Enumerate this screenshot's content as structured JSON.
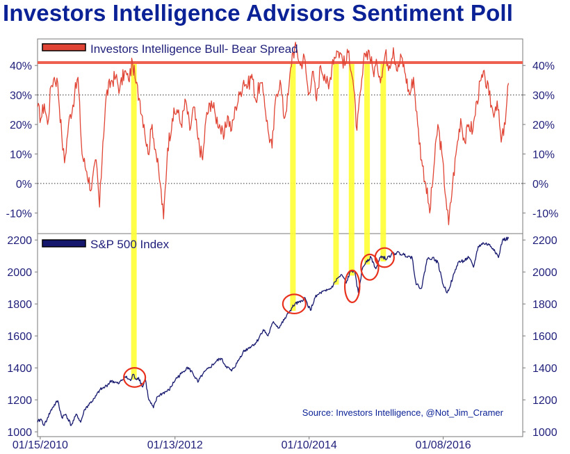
{
  "title": "Investors Intelligence Advisors Sentiment Poll",
  "colors": {
    "title": "#0b2196",
    "spread_line": "#e04434",
    "sp500_line": "#16186e",
    "threshold": "#ef5f4f",
    "highlight": "#ffff33",
    "circle": "#e8321e",
    "axis_text": "#1e1e7a"
  },
  "chart_data": [
    {
      "type": "line",
      "name": "spread",
      "legend": "Investors Intelligence Bull- Bear Spread",
      "ylabel_ticks": [
        "40%",
        "30%",
        "20%",
        "10%",
        "0%",
        "-10%"
      ],
      "ytick_values": [
        40,
        30,
        20,
        10,
        0,
        -10
      ],
      "ylim": [
        -17,
        49
      ],
      "threshold": 41,
      "gridlines": [
        30,
        0
      ],
      "x_range": [
        2010.0,
        2017.2
      ],
      "anchors": [
        [
          2010.0,
          26
        ],
        [
          2010.05,
          22
        ],
        [
          2010.1,
          27
        ],
        [
          2010.15,
          20
        ],
        [
          2010.2,
          33
        ],
        [
          2010.25,
          36
        ],
        [
          2010.3,
          34
        ],
        [
          2010.36,
          16
        ],
        [
          2010.4,
          7
        ],
        [
          2010.46,
          20
        ],
        [
          2010.55,
          30
        ],
        [
          2010.6,
          36
        ],
        [
          2010.66,
          10
        ],
        [
          2010.73,
          4
        ],
        [
          2010.8,
          -2
        ],
        [
          2010.87,
          8
        ],
        [
          2010.92,
          -8
        ],
        [
          2010.97,
          14
        ],
        [
          2011.02,
          30
        ],
        [
          2011.1,
          35
        ],
        [
          2011.16,
          36
        ],
        [
          2011.22,
          32
        ],
        [
          2011.29,
          38
        ],
        [
          2011.35,
          35
        ],
        [
          2011.41,
          41
        ],
        [
          2011.46,
          34
        ],
        [
          2011.52,
          28
        ],
        [
          2011.58,
          20
        ],
        [
          2011.64,
          10
        ],
        [
          2011.7,
          20
        ],
        [
          2011.76,
          10
        ],
        [
          2011.82,
          0
        ],
        [
          2011.87,
          -12
        ],
        [
          2011.93,
          12
        ],
        [
          2012.0,
          22
        ],
        [
          2012.07,
          25
        ],
        [
          2012.13,
          20
        ],
        [
          2012.2,
          28
        ],
        [
          2012.26,
          18
        ],
        [
          2012.32,
          26
        ],
        [
          2012.38,
          15
        ],
        [
          2012.45,
          8
        ],
        [
          2012.5,
          22
        ],
        [
          2012.58,
          28
        ],
        [
          2012.64,
          23
        ],
        [
          2012.7,
          20
        ],
        [
          2012.76,
          15
        ],
        [
          2012.82,
          23
        ],
        [
          2012.88,
          18
        ],
        [
          2012.94,
          26
        ],
        [
          2013.0,
          30
        ],
        [
          2013.06,
          35
        ],
        [
          2013.12,
          33
        ],
        [
          2013.18,
          37
        ],
        [
          2013.24,
          28
        ],
        [
          2013.3,
          34
        ],
        [
          2013.36,
          30
        ],
        [
          2013.42,
          18
        ],
        [
          2013.48,
          12
        ],
        [
          2013.54,
          30
        ],
        [
          2013.6,
          35
        ],
        [
          2013.66,
          22
        ],
        [
          2013.72,
          30
        ],
        [
          2013.78,
          44
        ],
        [
          2013.84,
          46
        ],
        [
          2013.9,
          40
        ],
        [
          2013.96,
          43
        ],
        [
          2014.02,
          30
        ],
        [
          2014.08,
          38
        ],
        [
          2014.14,
          28
        ],
        [
          2014.2,
          40
        ],
        [
          2014.26,
          37
        ],
        [
          2014.32,
          32
        ],
        [
          2014.38,
          42
        ],
        [
          2014.44,
          45
        ],
        [
          2014.5,
          44
        ],
        [
          2014.56,
          40
        ],
        [
          2014.62,
          45
        ],
        [
          2014.68,
          35
        ],
        [
          2014.74,
          18
        ],
        [
          2014.8,
          32
        ],
        [
          2014.86,
          44
        ],
        [
          2014.92,
          45
        ],
        [
          2014.98,
          38
        ],
        [
          2015.04,
          40
        ],
        [
          2015.1,
          36
        ],
        [
          2015.16,
          44
        ],
        [
          2015.22,
          40
        ],
        [
          2015.28,
          46
        ],
        [
          2015.34,
          38
        ],
        [
          2015.4,
          43
        ],
        [
          2015.46,
          37
        ],
        [
          2015.52,
          30
        ],
        [
          2015.58,
          36
        ],
        [
          2015.64,
          20
        ],
        [
          2015.7,
          8
        ],
        [
          2015.76,
          0
        ],
        [
          2015.82,
          -10
        ],
        [
          2015.88,
          5
        ],
        [
          2015.94,
          20
        ],
        [
          2016.0,
          10
        ],
        [
          2016.06,
          -5
        ],
        [
          2016.1,
          -14
        ],
        [
          2016.16,
          0
        ],
        [
          2016.22,
          12
        ],
        [
          2016.28,
          22
        ],
        [
          2016.34,
          14
        ],
        [
          2016.4,
          20
        ],
        [
          2016.46,
          18
        ],
        [
          2016.52,
          28
        ],
        [
          2016.58,
          35
        ],
        [
          2016.64,
          36
        ],
        [
          2016.7,
          30
        ],
        [
          2016.76,
          24
        ],
        [
          2016.82,
          28
        ],
        [
          2016.88,
          14
        ],
        [
          2016.94,
          20
        ],
        [
          2016.99,
          34
        ]
      ]
    },
    {
      "type": "line",
      "name": "sp500",
      "legend": "S&P 500 Index",
      "ylabel_ticks": [
        "2200",
        "2000",
        "1800",
        "1600",
        "1400",
        "1200",
        "1000"
      ],
      "ytick_values": [
        2200,
        2000,
        1800,
        1600,
        1400,
        1200,
        1000
      ],
      "ylim": [
        970,
        2240
      ],
      "x_range": [
        2010.0,
        2017.2
      ],
      "anchors": [
        [
          2010.0,
          1060
        ],
        [
          2010.05,
          1080
        ],
        [
          2010.1,
          1040
        ],
        [
          2010.15,
          1090
        ],
        [
          2010.22,
          1150
        ],
        [
          2010.3,
          1195
        ],
        [
          2010.36,
          1090
        ],
        [
          2010.42,
          1110
        ],
        [
          2010.5,
          1040
        ],
        [
          2010.58,
          1110
        ],
        [
          2010.64,
          1060
        ],
        [
          2010.7,
          1140
        ],
        [
          2010.78,
          1180
        ],
        [
          2010.85,
          1210
        ],
        [
          2010.92,
          1260
        ],
        [
          2011.0,
          1280
        ],
        [
          2011.1,
          1320
        ],
        [
          2011.2,
          1300
        ],
        [
          2011.3,
          1345
        ],
        [
          2011.38,
          1320
        ],
        [
          2011.42,
          1360
        ],
        [
          2011.46,
          1330
        ],
        [
          2011.5,
          1340
        ],
        [
          2011.56,
          1280
        ],
        [
          2011.6,
          1330
        ],
        [
          2011.65,
          1200
        ],
        [
          2011.72,
          1150
        ],
        [
          2011.78,
          1220
        ],
        [
          2011.85,
          1240
        ],
        [
          2011.95,
          1260
        ],
        [
          2012.05,
          1330
        ],
        [
          2012.15,
          1370
        ],
        [
          2012.22,
          1405
        ],
        [
          2012.3,
          1370
        ],
        [
          2012.38,
          1310
        ],
        [
          2012.45,
          1360
        ],
        [
          2012.55,
          1400
        ],
        [
          2012.65,
          1440
        ],
        [
          2012.72,
          1460
        ],
        [
          2012.8,
          1410
        ],
        [
          2012.88,
          1380
        ],
        [
          2012.96,
          1430
        ],
        [
          2013.05,
          1500
        ],
        [
          2013.15,
          1530
        ],
        [
          2013.25,
          1560
        ],
        [
          2013.35,
          1640
        ],
        [
          2013.42,
          1600
        ],
        [
          2013.5,
          1690
        ],
        [
          2013.58,
          1650
        ],
        [
          2013.66,
          1700
        ],
        [
          2013.75,
          1760
        ],
        [
          2013.82,
          1800
        ],
        [
          2013.9,
          1810
        ],
        [
          2013.96,
          1840
        ],
        [
          2014.05,
          1760
        ],
        [
          2014.12,
          1840
        ],
        [
          2014.2,
          1870
        ],
        [
          2014.28,
          1880
        ],
        [
          2014.36,
          1900
        ],
        [
          2014.45,
          1960
        ],
        [
          2014.52,
          1980
        ],
        [
          2014.58,
          1930
        ],
        [
          2014.64,
          2000
        ],
        [
          2014.7,
          2010
        ],
        [
          2014.76,
          1870
        ],
        [
          2014.82,
          2020
        ],
        [
          2014.88,
          2070
        ],
        [
          2014.95,
          2090
        ],
        [
          2015.02,
          2020
        ],
        [
          2015.1,
          2100
        ],
        [
          2015.18,
          2080
        ],
        [
          2015.25,
          2110
        ],
        [
          2015.33,
          2120
        ],
        [
          2015.42,
          2110
        ],
        [
          2015.5,
          2100
        ],
        [
          2015.56,
          2090
        ],
        [
          2015.62,
          1920
        ],
        [
          2015.7,
          1900
        ],
        [
          2015.78,
          2080
        ],
        [
          2015.86,
          2090
        ],
        [
          2015.94,
          2060
        ],
        [
          2016.02,
          1920
        ],
        [
          2016.08,
          1870
        ],
        [
          2016.16,
          1960
        ],
        [
          2016.24,
          2060
        ],
        [
          2016.32,
          2070
        ],
        [
          2016.4,
          2090
        ],
        [
          2016.47,
          2030
        ],
        [
          2016.54,
          2160
        ],
        [
          2016.62,
          2180
        ],
        [
          2016.7,
          2170
        ],
        [
          2016.78,
          2140
        ],
        [
          2016.84,
          2090
        ],
        [
          2016.9,
          2200
        ],
        [
          2016.99,
          2210
        ]
      ]
    }
  ],
  "x_axis": {
    "ticks": [
      {
        "label": "01/15/2010",
        "value": 2010.04
      },
      {
        "label": "01/13/2012",
        "value": 2012.04
      },
      {
        "label": "01/10/2014",
        "value": 2014.03
      },
      {
        "label": "01/08/2016",
        "value": 2016.02
      }
    ]
  },
  "highlights": [
    2011.43,
    2013.79,
    2014.43,
    2014.66,
    2014.89,
    2015.13
  ],
  "circles": [
    {
      "center": [
        2011.44,
        1340
      ],
      "radius": [
        2011.6,
        1400
      ]
    },
    {
      "center": [
        2013.81,
        1800
      ],
      "radius": [
        2013.98,
        1860
      ]
    },
    {
      "center": [
        2014.67,
        1910
      ],
      "radius": [
        2014.78,
        2010
      ]
    },
    {
      "center": [
        2014.93,
        2030
      ],
      "radius": [
        2015.06,
        2110
      ]
    },
    {
      "center": [
        2015.15,
        2090
      ],
      "radius": [
        2015.29,
        2150
      ]
    }
  ],
  "source": "Source: Investors Intelligence, @Not_Jim_Cramer"
}
